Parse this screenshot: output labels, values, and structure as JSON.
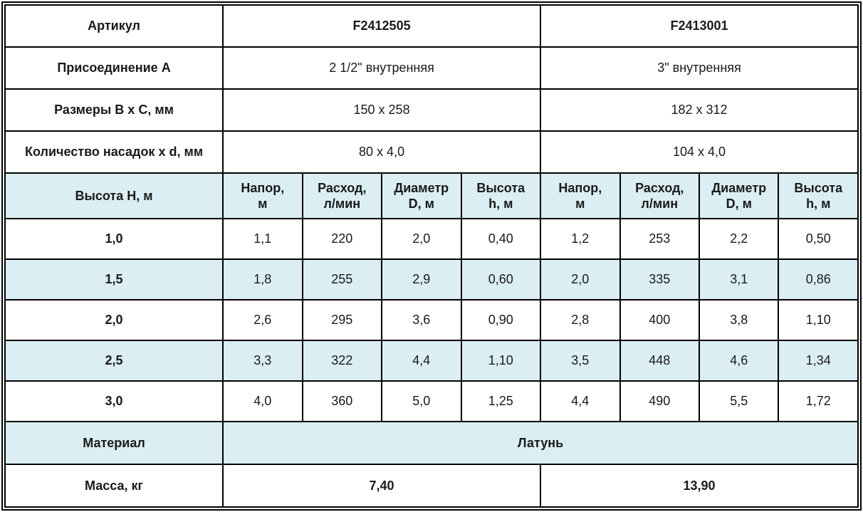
{
  "colors": {
    "article_blue": "#1e3fa8",
    "row_highlight": "#daeef3",
    "border": "#000000"
  },
  "table": {
    "info_rows": [
      {
        "label": "Артикул",
        "product1": "F2412505",
        "product2": "F2413001"
      },
      {
        "label": "Присоединение A",
        "product1": "2 1/2\" внутренняя",
        "product2": "3\" внутренняя"
      },
      {
        "label": "Размеры B x C, мм",
        "product1": "150 x 258",
        "product2": "182 x 312"
      },
      {
        "label": "Количество насадок x d, мм",
        "product1": "80 x 4,0",
        "product2": "104 x 4,0"
      }
    ],
    "header": {
      "height_label": "Высота H, м",
      "columns": [
        "Напор,\nм",
        "Расход,\nл/мин",
        "Диаметр\nD, м",
        "Высота\nh, м",
        "Напор,\nм",
        "Расход,\nл/мин",
        "Диаметр\nD, м",
        "Высота\nh, м"
      ]
    },
    "data_rows": [
      {
        "height": "1,0",
        "values": [
          "1,1",
          "220",
          "2,0",
          "0,40",
          "1,2",
          "253",
          "2,2",
          "0,50"
        ]
      },
      {
        "height": "1,5",
        "values": [
          "1,8",
          "255",
          "2,9",
          "0,60",
          "2,0",
          "335",
          "3,1",
          "0,86"
        ]
      },
      {
        "height": "2,0",
        "values": [
          "2,6",
          "295",
          "3,6",
          "0,90",
          "2,8",
          "400",
          "3,8",
          "1,10"
        ]
      },
      {
        "height": "2,5",
        "values": [
          "3,3",
          "322",
          "4,4",
          "1,10",
          "3,5",
          "448",
          "4,6",
          "1,34"
        ]
      },
      {
        "height": "3,0",
        "values": [
          "4,0",
          "360",
          "5,0",
          "1,25",
          "4,4",
          "490",
          "5,5",
          "1,72"
        ]
      }
    ],
    "material": {
      "label": "Материал",
      "value": "Латунь"
    },
    "mass": {
      "label": "Масса, кг",
      "product1": "7,40",
      "product2": "13,90"
    }
  }
}
